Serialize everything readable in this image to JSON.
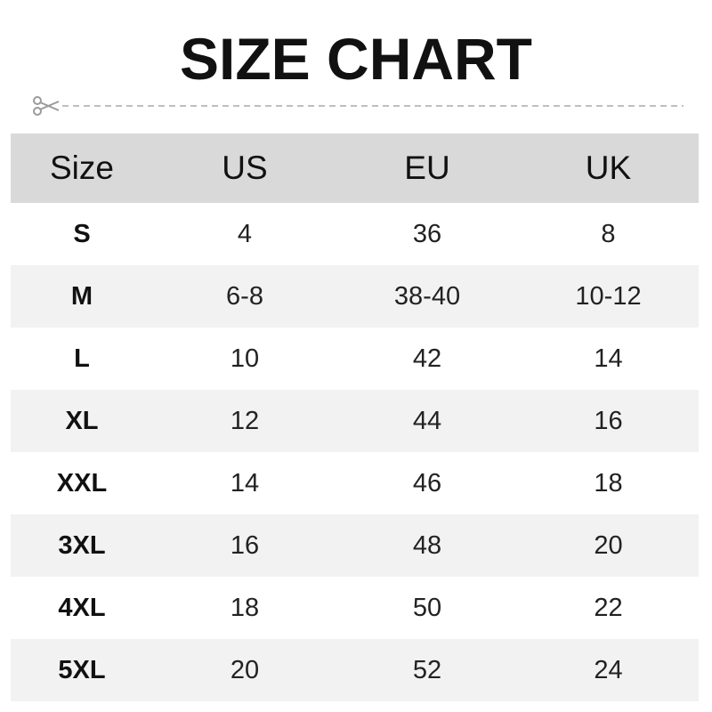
{
  "title": "SIZE CHART",
  "icons": {
    "cut": "scissors-icon"
  },
  "colors": {
    "header_bg": "#d9d9d9",
    "stripe_bg": "#f2f2f2",
    "text": "#111111",
    "cutline": "#a0a0a0"
  },
  "chart_data": {
    "type": "table",
    "title": "SIZE CHART",
    "columns": [
      "Size",
      "US",
      "EU",
      "UK"
    ],
    "rows": [
      [
        "S",
        "4",
        "36",
        "8"
      ],
      [
        "M",
        "6-8",
        "38-40",
        "10-12"
      ],
      [
        "L",
        "10",
        "42",
        "14"
      ],
      [
        "XL",
        "12",
        "44",
        "16"
      ],
      [
        "XXL",
        "14",
        "46",
        "18"
      ],
      [
        "3XL",
        "16",
        "48",
        "20"
      ],
      [
        "4XL",
        "18",
        "50",
        "22"
      ],
      [
        "5XL",
        "20",
        "52",
        "24"
      ]
    ]
  }
}
